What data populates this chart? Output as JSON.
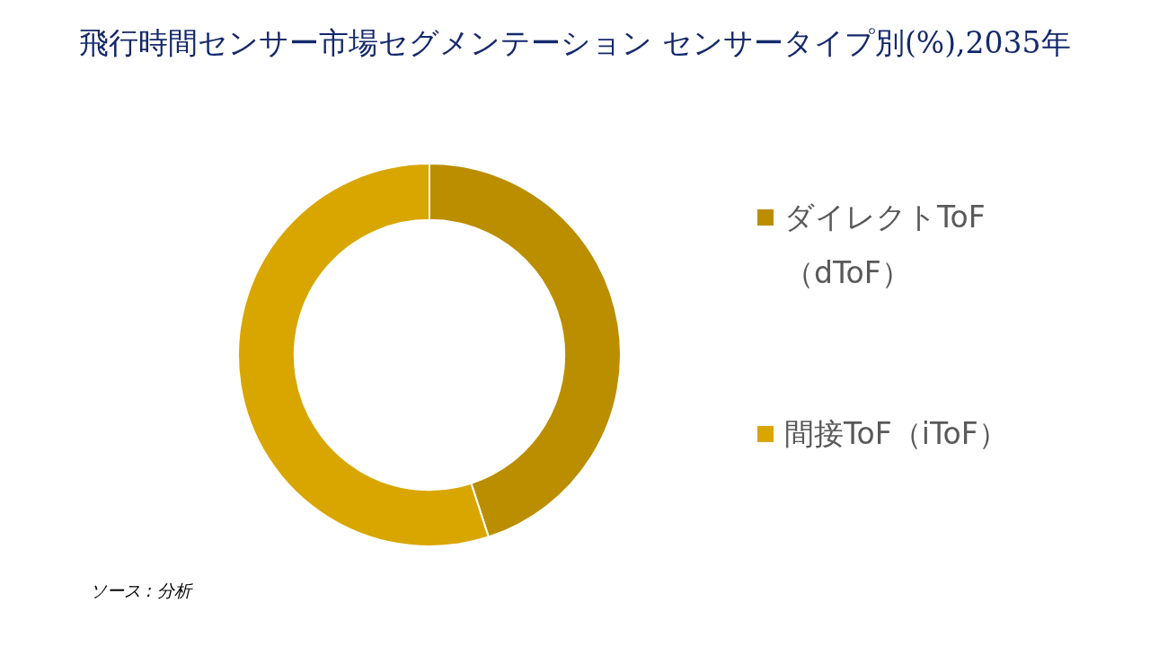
{
  "chart_data": {
    "type": "donut",
    "title": "飛行時間センサー市場セグメンテーション センサータイプ別(%),2035年",
    "categories": [
      "ダイレクトToF（dToF）",
      "間接ToF（iToF）"
    ],
    "values": [
      45,
      55
    ],
    "colors": [
      "#bb8e00",
      "#d9a600"
    ],
    "legend": "right",
    "annotations": [
      "ソース : 分析"
    ]
  }
}
